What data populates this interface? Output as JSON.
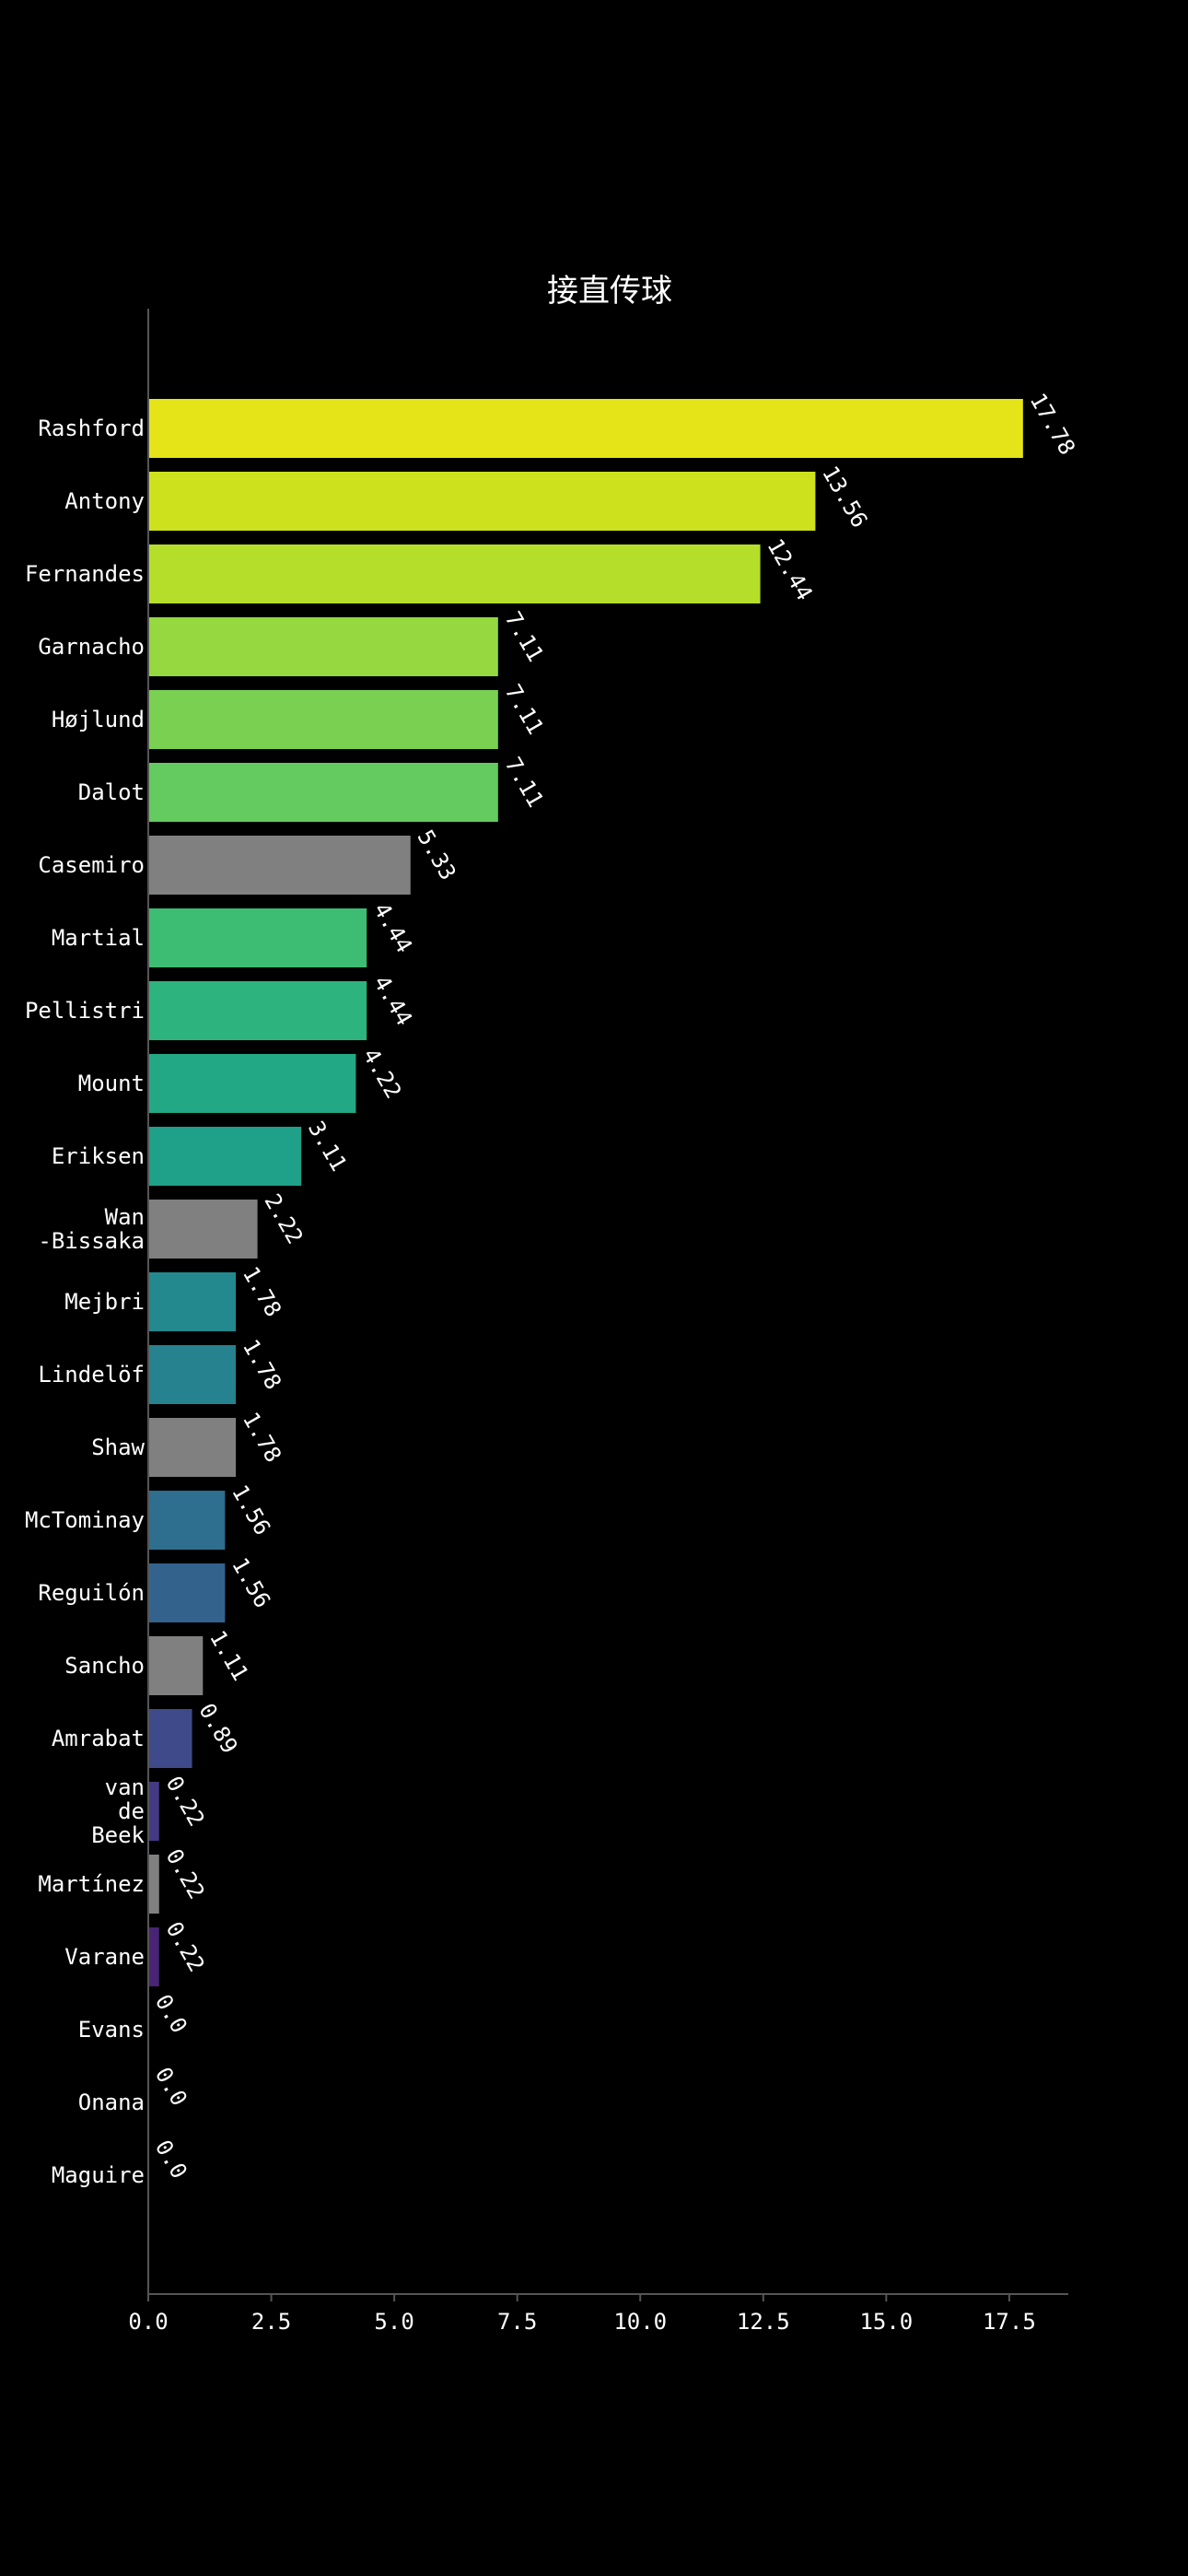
{
  "chart_data": {
    "type": "bar",
    "orientation": "horizontal",
    "title": "接直传球",
    "xlabel": "",
    "ylabel": "",
    "xlim": [
      0,
      18.7
    ],
    "x_ticks": [
      "0.0",
      "2.5",
      "5.0",
      "7.5",
      "10.0",
      "12.5",
      "15.0",
      "17.5"
    ],
    "grid": false,
    "legend": "none",
    "categories": [
      {
        "label": [
          "Rashford"
        ],
        "value": 17.78,
        "value_label": "17.78",
        "color": "#e4e419"
      },
      {
        "label": [
          "Antony"
        ],
        "value": 13.56,
        "value_label": "13.56",
        "color": "#cde11d"
      },
      {
        "label": [
          "Fernandes"
        ],
        "value": 12.44,
        "value_label": "12.44",
        "color": "#b5de2b"
      },
      {
        "label": [
          "Garnacho"
        ],
        "value": 7.11,
        "value_label": "7.11",
        "color": "#95d840"
      },
      {
        "label": [
          "Højlund"
        ],
        "value": 7.11,
        "value_label": "7.11",
        "color": "#7ad151"
      },
      {
        "label": [
          "Dalot"
        ],
        "value": 7.11,
        "value_label": "7.11",
        "color": "#63cb5f"
      },
      {
        "label": [
          "Casemiro"
        ],
        "value": 5.33,
        "value_label": "5.33",
        "color": "#808080"
      },
      {
        "label": [
          "Martial"
        ],
        "value": 4.44,
        "value_label": "4.44",
        "color": "#3dbc74"
      },
      {
        "label": [
          "Pellistri"
        ],
        "value": 4.44,
        "value_label": "4.44",
        "color": "#2db37e"
      },
      {
        "label": [
          "Mount"
        ],
        "value": 4.22,
        "value_label": "4.22",
        "color": "#22a884"
      },
      {
        "label": [
          "Eriksen"
        ],
        "value": 3.11,
        "value_label": "3.11",
        "color": "#1fa088"
      },
      {
        "label": [
          "Wan",
          "-Bissaka"
        ],
        "value": 2.22,
        "value_label": "2.22",
        "color": "#808080"
      },
      {
        "label": [
          "Mejbri"
        ],
        "value": 1.78,
        "value_label": "1.78",
        "color": "#23898e"
      },
      {
        "label": [
          "Lindelöf"
        ],
        "value": 1.78,
        "value_label": "1.78",
        "color": "#26828e"
      },
      {
        "label": [
          "Shaw"
        ],
        "value": 1.78,
        "value_label": "1.78",
        "color": "#808080"
      },
      {
        "label": [
          "McTominay"
        ],
        "value": 1.56,
        "value_label": "1.56",
        "color": "#2e6e8e"
      },
      {
        "label": [
          "Reguilón"
        ],
        "value": 1.56,
        "value_label": "1.56",
        "color": "#33638d"
      },
      {
        "label": [
          "Sancho"
        ],
        "value": 1.11,
        "value_label": "1.11",
        "color": "#808080"
      },
      {
        "label": [
          "Amrabat"
        ],
        "value": 0.89,
        "value_label": "0.89",
        "color": "#3e4a89"
      },
      {
        "label": [
          "van",
          "de",
          "Beek"
        ],
        "value": 0.22,
        "value_label": "0.22",
        "color": "#443a83"
      },
      {
        "label": [
          "Martínez"
        ],
        "value": 0.22,
        "value_label": "0.22",
        "color": "#808080"
      },
      {
        "label": [
          "Varane"
        ],
        "value": 0.22,
        "value_label": "0.22",
        "color": "#482475"
      },
      {
        "label": [
          "Evans"
        ],
        "value": 0.0,
        "value_label": "0.0",
        "color": "#471365"
      },
      {
        "label": [
          "Onana"
        ],
        "value": 0.0,
        "value_label": "0.0",
        "color": "#440154"
      },
      {
        "label": [
          "Maguire"
        ],
        "value": 0.0,
        "value_label": "0.0",
        "color": "#440154"
      }
    ]
  }
}
